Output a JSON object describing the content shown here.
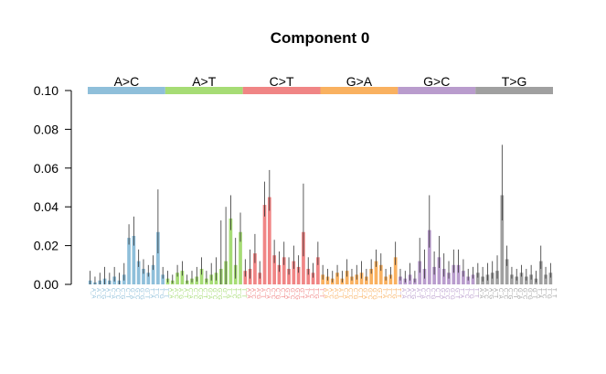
{
  "chart_data": {
    "type": "bar",
    "title": "Component 0",
    "xlabel": "",
    "ylabel": "",
    "ylim": [
      0,
      0.1
    ],
    "yticks": [
      "0.00",
      "0.02",
      "0.04",
      "0.06",
      "0.08",
      "0.10"
    ],
    "grid": false,
    "error_bars": true,
    "groups": [
      {
        "name": "A>C",
        "color": "#8fbfda"
      },
      {
        "name": "A>T",
        "color": "#a6dc75"
      },
      {
        "name": "C>T",
        "color": "#f08585"
      },
      {
        "name": "G>A",
        "color": "#f9b160"
      },
      {
        "name": "G>C",
        "color": "#b99ccd"
      },
      {
        "name": "T>G",
        "color": "#a0a0a0"
      }
    ],
    "contexts": [
      "A_A",
      "A_C",
      "A_G",
      "A_T",
      "C_A",
      "C_C",
      "C_G",
      "C_T",
      "G_A",
      "G_C",
      "G_G",
      "G_T",
      "T_A",
      "T_C",
      "T_G",
      "T_T"
    ],
    "series": [
      {
        "group": "A>C",
        "values": [
          0.002,
          0.001,
          0.002,
          0.003,
          0.002,
          0.004,
          0.002,
          0.005,
          0.024,
          0.025,
          0.012,
          0.008,
          0.006,
          0.01,
          0.027,
          0.005
        ],
        "errors": [
          0.005,
          0.003,
          0.004,
          0.006,
          0.004,
          0.005,
          0.004,
          0.006,
          0.007,
          0.01,
          0.006,
          0.005,
          0.004,
          0.005,
          0.022,
          0.004
        ]
      },
      {
        "group": "A>T",
        "values": [
          0.003,
          0.002,
          0.006,
          0.007,
          0.002,
          0.003,
          0.004,
          0.008,
          0.003,
          0.005,
          0.006,
          0.008,
          0.012,
          0.034,
          0.01,
          0.027
        ],
        "errors": [
          0.004,
          0.003,
          0.004,
          0.005,
          0.003,
          0.004,
          0.005,
          0.006,
          0.004,
          0.006,
          0.008,
          0.025,
          0.028,
          0.012,
          0.014,
          0.01
        ]
      },
      {
        "group": "C>T",
        "values": [
          0.007,
          0.008,
          0.016,
          0.006,
          0.041,
          0.045,
          0.015,
          0.01,
          0.014,
          0.008,
          0.012,
          0.009,
          0.027,
          0.008,
          0.006,
          0.014
        ],
        "errors": [
          0.006,
          0.01,
          0.01,
          0.006,
          0.012,
          0.014,
          0.008,
          0.007,
          0.008,
          0.006,
          0.008,
          0.006,
          0.025,
          0.006,
          0.005,
          0.008
        ]
      },
      {
        "group": "G>A",
        "values": [
          0.005,
          0.004,
          0.003,
          0.006,
          0.003,
          0.007,
          0.004,
          0.005,
          0.006,
          0.004,
          0.008,
          0.012,
          0.01,
          0.004,
          0.005,
          0.014
        ],
        "errors": [
          0.005,
          0.004,
          0.004,
          0.004,
          0.004,
          0.006,
          0.004,
          0.005,
          0.006,
          0.004,
          0.005,
          0.006,
          0.006,
          0.004,
          0.004,
          0.008
        ]
      },
      {
        "group": "G>C",
        "values": [
          0.004,
          0.003,
          0.005,
          0.003,
          0.012,
          0.008,
          0.028,
          0.009,
          0.014,
          0.008,
          0.006,
          0.01,
          0.01,
          0.007,
          0.004,
          0.005
        ],
        "errors": [
          0.004,
          0.004,
          0.006,
          0.004,
          0.012,
          0.01,
          0.018,
          0.008,
          0.011,
          0.008,
          0.006,
          0.008,
          0.008,
          0.006,
          0.004,
          0.004
        ]
      },
      {
        "group": "T>G",
        "values": [
          0.006,
          0.004,
          0.005,
          0.006,
          0.007,
          0.046,
          0.013,
          0.005,
          0.004,
          0.006,
          0.004,
          0.005,
          0.003,
          0.012,
          0.005,
          0.006
        ],
        "errors": [
          0.005,
          0.005,
          0.006,
          0.006,
          0.008,
          0.026,
          0.007,
          0.004,
          0.004,
          0.004,
          0.004,
          0.005,
          0.004,
          0.008,
          0.004,
          0.005
        ]
      }
    ]
  }
}
